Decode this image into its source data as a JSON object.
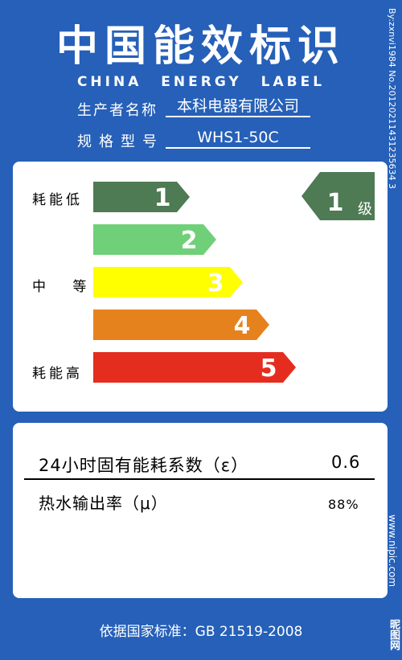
{
  "header": {
    "title_cn": "中国能效标识",
    "title_en": "CHINA ENERGY LABEL"
  },
  "info": {
    "manufacturer_label": "生产者名称",
    "manufacturer_value": "本科电器有限公司",
    "model_label": "规格型号",
    "model_value": "WHS1-50C"
  },
  "grades": {
    "low_label": "耗能低",
    "mid_label": "中 等",
    "high_label": "耗能高",
    "bars": [
      {
        "num": "1",
        "color": "#4e7a54"
      },
      {
        "num": "2",
        "color": "#6fd079"
      },
      {
        "num": "3",
        "color": "#ffff00"
      },
      {
        "num": "4",
        "color": "#e6821e"
      },
      {
        "num": "5",
        "color": "#e42d1f"
      }
    ],
    "rating_num": "1",
    "rating_unit": "级",
    "rating_color": "#4e7a54"
  },
  "metrics": {
    "row1_label": "24小时固有能耗系数（ε）",
    "row1_value": "0.6",
    "row2_label": "热水输出率（μ）",
    "row2_value": "88%"
  },
  "footer": "依据国家标准：GB 21519-2008",
  "side": {
    "right_top": "By:zxnvi1984 No.20120211431235634 3",
    "right_bottom": "www.nipic.com",
    "logo": "昵图网"
  }
}
